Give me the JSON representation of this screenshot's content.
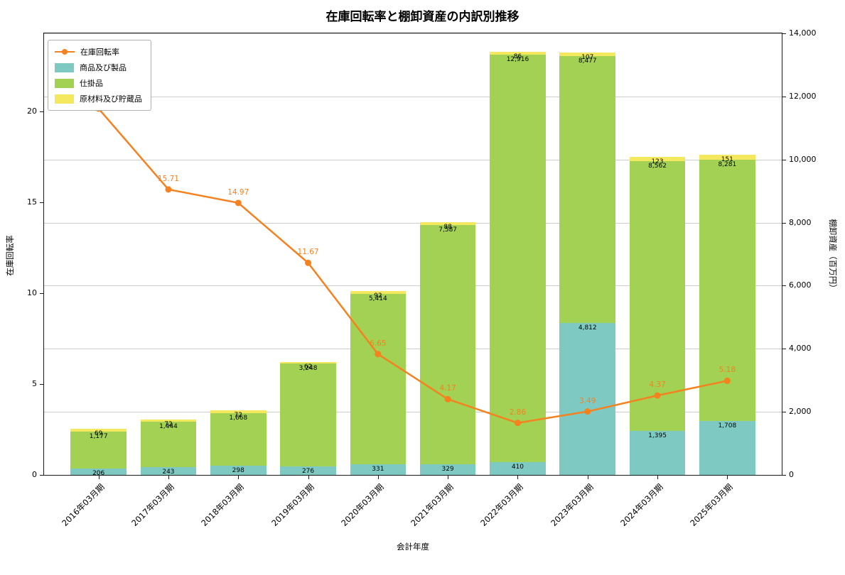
{
  "chart_data": {
    "type": "bar+line",
    "title": "在庫回転率と棚卸資産の内訳別推移",
    "xlabel": "会計年度",
    "ylabel_left": "在庫回転率",
    "ylabel_right": "棚卸資産（百万円）",
    "legend_position": "upper left",
    "grid": true,
    "categories": [
      "2016年03月期",
      "2017年03月期",
      "2018年03月期",
      "2019年03月期",
      "2020年03月期",
      "2021年03月期",
      "2022年03月期",
      "2023年03月期",
      "2024年03月期",
      "2025年03月期"
    ],
    "series": [
      {
        "id": "turnover",
        "kind": "line",
        "name": "在庫回転率",
        "color": "#f5821f",
        "axis": "left",
        "values": [
          20.16,
          15.71,
          14.97,
          11.67,
          6.65,
          4.17,
          2.86,
          3.49,
          4.37,
          5.18
        ]
      },
      {
        "id": "products",
        "kind": "bar",
        "name": "商品及び製品",
        "color": "#7ecac2",
        "axis": "right",
        "values": [
          206,
          243,
          298,
          276,
          331,
          329,
          410,
          4812,
          1395,
          1708
        ]
      },
      {
        "id": "wip",
        "kind": "bar",
        "name": "仕掛品",
        "color": "#a2d153",
        "axis": "right",
        "values": [
          1177,
          1444,
          1668,
          3248,
          5414,
          7587,
          12916,
          8477,
          8562,
          8281
        ]
      },
      {
        "id": "raw-materials",
        "kind": "bar",
        "name": "原材料及び貯蔵品",
        "color": "#f4e95e",
        "axis": "right",
        "values": [
          69,
          72,
          72,
          62,
          92,
          88,
          86,
          107,
          123,
          151
        ]
      }
    ],
    "left_axis": {
      "max": 24.3,
      "ticks": [
        0,
        5,
        10,
        15,
        20
      ],
      "tick_labels": [
        "0",
        "5",
        "10",
        "15",
        "20"
      ]
    },
    "right_axis": {
      "max": 14000,
      "ticks": [
        0,
        2000,
        4000,
        6000,
        8000,
        10000,
        12000,
        14000
      ],
      "tick_labels": [
        "0",
        "2,000",
        "4,000",
        "6,000",
        "8,000",
        "10,000",
        "12,000",
        "14,000"
      ]
    }
  }
}
